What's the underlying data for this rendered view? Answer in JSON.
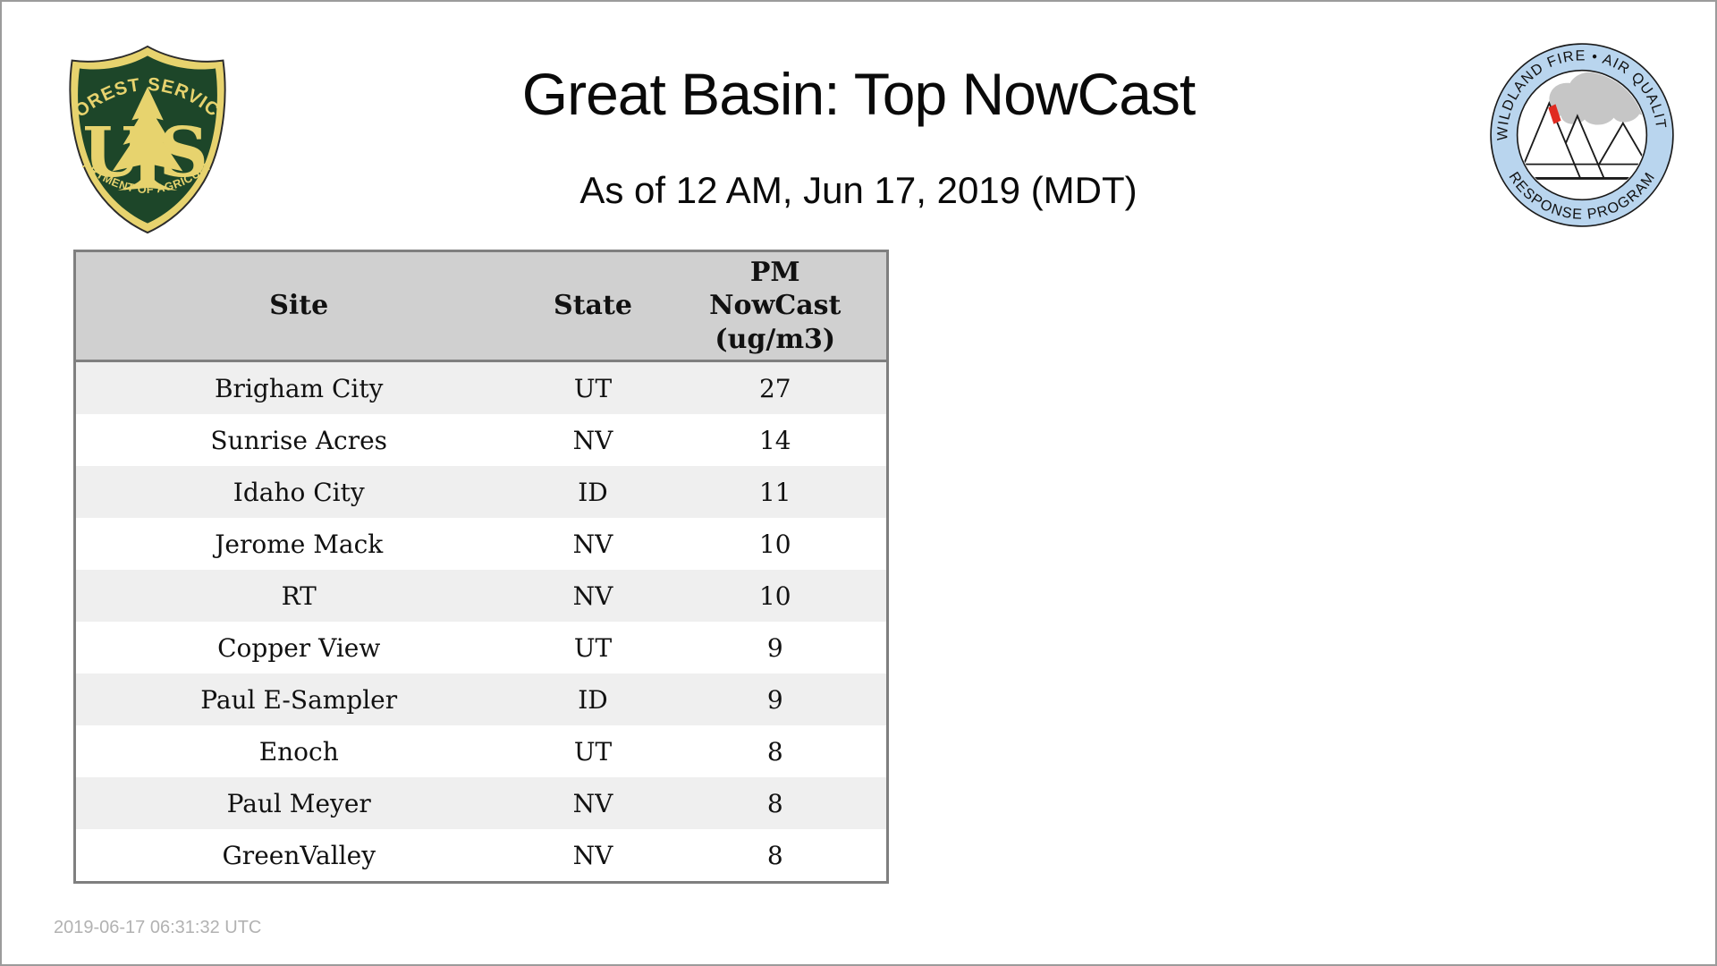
{
  "page": {
    "title": "Great Basin: Top NowCast",
    "subtitle": "As of 12 AM, Jun 17, 2019 (MDT)",
    "footer_timestamp": "2019-06-17 06:31:32 UTC"
  },
  "logos": {
    "forest_service": {
      "label": "US Forest Service shield",
      "arc_top": "FOREST SERVICE",
      "letter_left": "U",
      "letter_right": "S",
      "arc_bottom": "DEPARTMENT OF AGRICULTURE",
      "green": "#1d4629",
      "gold": "#e7d36e"
    },
    "air_quality_program": {
      "label": "Wildland Fire Air Quality Response Program badge",
      "arc_top": "WILDLAND FIRE • AIR QUALITY",
      "arc_bottom": "RESPONSE PROGRAM",
      "ring_blue": "#b9d5ee",
      "smoke_gray": "#c6c6c6",
      "flame_red": "#e02a20"
    }
  },
  "table": {
    "columns": [
      {
        "label": "Site"
      },
      {
        "label": "State"
      },
      {
        "label": "PM\nNowCast\n(ug/m3)"
      }
    ],
    "rows": [
      {
        "site": "Brigham City",
        "state": "UT",
        "pm_nowcast": "27"
      },
      {
        "site": "Sunrise Acres",
        "state": "NV",
        "pm_nowcast": "14"
      },
      {
        "site": "Idaho City",
        "state": "ID",
        "pm_nowcast": "11"
      },
      {
        "site": "Jerome Mack",
        "state": "NV",
        "pm_nowcast": "10"
      },
      {
        "site": "RT",
        "state": "NV",
        "pm_nowcast": "10"
      },
      {
        "site": "Copper View",
        "state": "UT",
        "pm_nowcast": "9"
      },
      {
        "site": "Paul E-Sampler",
        "state": "ID",
        "pm_nowcast": "9"
      },
      {
        "site": "Enoch",
        "state": "UT",
        "pm_nowcast": "8"
      },
      {
        "site": "Paul Meyer",
        "state": "NV",
        "pm_nowcast": "8"
      },
      {
        "site": "GreenValley",
        "state": "NV",
        "pm_nowcast": "8"
      }
    ]
  }
}
